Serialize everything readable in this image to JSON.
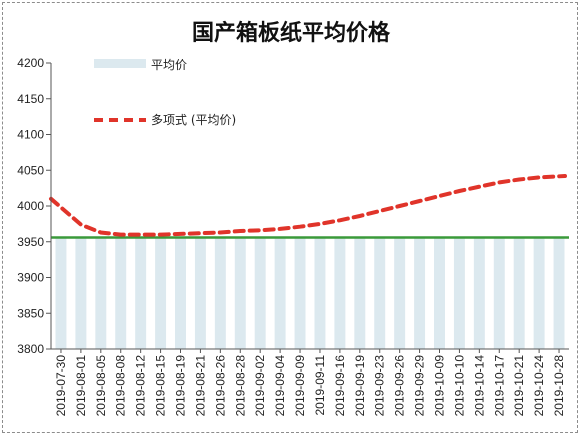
{
  "chart_data": {
    "type": "bar",
    "title": "国产箱板纸平均价格",
    "xlabel": "",
    "ylabel": "",
    "ylim": [
      3800,
      4200
    ],
    "yticks": [
      3800,
      3850,
      3900,
      3950,
      4000,
      4050,
      4100,
      4150,
      4200
    ],
    "grid": false,
    "legend_position": "top-left",
    "x_tick_labels": [
      "2019-07-30",
      "2019-08-01",
      "2019-08-05",
      "2019-08-08",
      "2019-08-12",
      "2019-08-15",
      "2019-08-19",
      "2019-08-21",
      "2019-08-26",
      "2019-08-28",
      "2019-09-02",
      "2019-09-04",
      "2019-09-09",
      "2019-09-11",
      "2019-09-16",
      "2019-09-19",
      "2019-09-23",
      "2019-09-26",
      "2019-09-29",
      "2019-10-09",
      "2019-10-10",
      "2019-10-14",
      "2019-10-17",
      "2019-10-21",
      "2019-10-24",
      "2019-10-28"
    ],
    "series": [
      {
        "name": "平均价",
        "type": "bar",
        "color": "#dce9ef",
        "values": [
          3956,
          3956,
          3956,
          3956,
          3956,
          3956,
          3956,
          3956,
          3956,
          3956,
          3956,
          3956,
          3956,
          3956,
          3956,
          3956,
          3956,
          3956,
          3956,
          3956,
          3956,
          3956,
          3956,
          3956,
          3956,
          3956
        ]
      },
      {
        "name": "多项式 (平均价)",
        "type": "trendline",
        "color": "#e0342a",
        "values": [
          4010,
          3974,
          3963,
          3960,
          3960,
          3960,
          3961,
          3962,
          3963,
          3965,
          3966,
          3968,
          3971,
          3975,
          3980,
          3986,
          3993,
          4000,
          4007,
          4014,
          4021,
          4027,
          4033,
          4037,
          4040,
          4042
        ]
      },
      {
        "name": "",
        "type": "reference",
        "color": "#3a9a3a",
        "value": 3956
      }
    ]
  }
}
